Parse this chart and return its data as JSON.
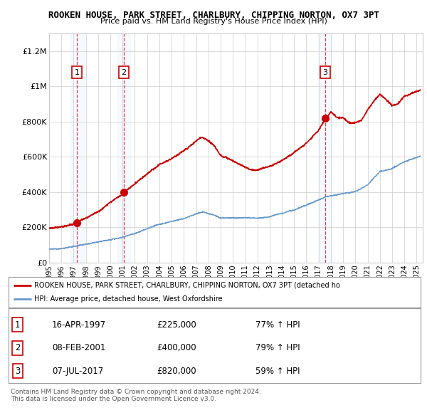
{
  "title": "ROOKEN HOUSE, PARK STREET, CHARLBURY, CHIPPING NORTON, OX7 3PT",
  "subtitle": "Price paid vs. HM Land Registry's House Price Index (HPI)",
  "xlim_start": 1995.0,
  "xlim_end": 2025.5,
  "ylim": [
    0,
    1300000
  ],
  "yticks": [
    0,
    200000,
    400000,
    600000,
    800000,
    1000000,
    1200000
  ],
  "ytick_labels": [
    "£0",
    "£200K",
    "£400K",
    "£600K",
    "£800K",
    "£1M",
    "£1.2M"
  ],
  "xtick_years": [
    1995,
    1996,
    1997,
    1998,
    1999,
    2000,
    2001,
    2002,
    2003,
    2004,
    2005,
    2006,
    2007,
    2008,
    2009,
    2010,
    2011,
    2012,
    2013,
    2014,
    2015,
    2016,
    2017,
    2018,
    2019,
    2020,
    2021,
    2022,
    2023,
    2024,
    2025
  ],
  "purchase_dates": [
    1997.29,
    2001.1,
    2017.52
  ],
  "purchase_prices": [
    225000,
    400000,
    820000
  ],
  "purchase_labels": [
    "1",
    "2",
    "3"
  ],
  "legend_label_red": "ROOKEN HOUSE, PARK STREET, CHARLBURY, CHIPPING NORTON, OX7 3PT (detached ho",
  "legend_label_blue": "HPI: Average price, detached house, West Oxfordshire",
  "table_data": [
    [
      "1",
      "16-APR-1997",
      "£225,000",
      "77% ↑ HPI"
    ],
    [
      "2",
      "08-FEB-2001",
      "£400,000",
      "79% ↑ HPI"
    ],
    [
      "3",
      "07-JUL-2017",
      "£820,000",
      "59% ↑ HPI"
    ]
  ],
  "footer": "Contains HM Land Registry data © Crown copyright and database right 2024.\nThis data is licensed under the Open Government Licence v3.0.",
  "red_color": "#cc0000",
  "blue_color": "#6699cc",
  "band_color": "#ddeeff",
  "grid_color": "#cccccc",
  "chart_bg": "#ffffff"
}
